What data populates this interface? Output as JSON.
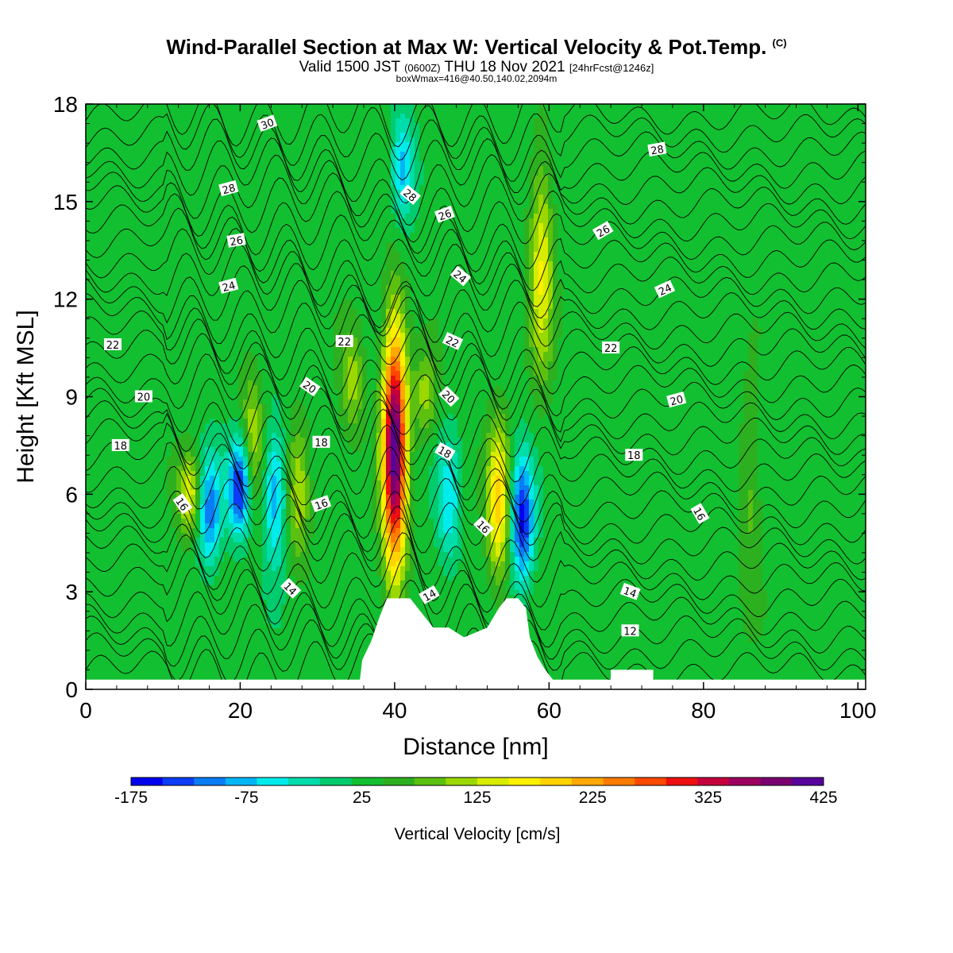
{
  "header": {
    "title": "Wind-Parallel Section at Max W: Vertical Velocity & Pot.Temp.",
    "title_mark": "(C)",
    "subtitle_a": "Valid 1500 JST",
    "subtitle_b": "(0600Z)",
    "subtitle_c": "THU 18 Nov 2021",
    "subtitle_d": "[24hrFcst@1246z]",
    "subsubtitle": "boxWmax=416@40.50,140.02,2094m"
  },
  "colors": {
    "bins": [
      "#0000ee",
      "#0c3cf5",
      "#0a7cf5",
      "#00b6f5",
      "#00ecec",
      "#00dcaa",
      "#00cc6e",
      "#12bf30",
      "#2db020",
      "#5cc010",
      "#9ad800",
      "#d8ec00",
      "#fff000",
      "#ffd200",
      "#ffa800",
      "#ff7c00",
      "#ff4800",
      "#ee1010",
      "#c4003c",
      "#9c0060",
      "#7a0070",
      "#56049c"
    ],
    "contour": "#000000",
    "terrain": "#ffffff"
  },
  "chart_data": {
    "type": "heatmap",
    "xlabel": "Distance [nm]",
    "ylabel": "Height [Kft MSL]",
    "xlim": [
      0,
      101
    ],
    "ylim": [
      0,
      18
    ],
    "xticks": [
      "0",
      "20",
      "40",
      "60",
      "80",
      "100"
    ],
    "xtick_values": [
      0,
      20,
      40,
      60,
      80,
      100
    ],
    "yticks": [
      "0",
      "3",
      "6",
      "9",
      "12",
      "15",
      "18"
    ],
    "ytick_values": [
      0,
      3,
      6,
      9,
      12,
      15,
      18
    ],
    "colorbar": {
      "label": "Vertical Velocity [cm/s]",
      "min": -175,
      "max": 425,
      "tick_labels": [
        "-175",
        "-75",
        "25",
        "125",
        "225",
        "325",
        "425"
      ]
    },
    "background_value": 30,
    "updrafts": [
      {
        "x": 40,
        "y_min": 3.0,
        "y_max": 11.8,
        "peak": 416
      },
      {
        "x": 53.5,
        "y_min": 3.0,
        "y_max": 8.5,
        "peak": 190
      },
      {
        "x": 59,
        "y_min": 9.0,
        "y_max": 17.0,
        "peak": 150
      },
      {
        "x": 21.5,
        "y_min": 5.0,
        "y_max": 10.0,
        "peak": 130
      },
      {
        "x": 13.5,
        "y_min": 4.5,
        "y_max": 7.5,
        "peak": 150
      },
      {
        "x": 27.5,
        "y_min": 3.5,
        "y_max": 8.5,
        "peak": 120
      },
      {
        "x": 34.5,
        "y_min": 7.5,
        "y_max": 11.5,
        "peak": 110
      },
      {
        "x": 44,
        "y_min": 7.5,
        "y_max": 10.5,
        "peak": 110
      },
      {
        "x": 86,
        "y_min": 2.5,
        "y_max": 9.5,
        "peak": 80
      }
    ],
    "downdrafts": [
      {
        "x": 20,
        "y_min": 4.5,
        "y_max": 8.0,
        "peak": -170
      },
      {
        "x": 16,
        "y_min": 3.5,
        "y_max": 7.5,
        "peak": -110
      },
      {
        "x": 24.5,
        "y_min": 3.5,
        "y_max": 8.5,
        "peak": -90
      },
      {
        "x": 56.5,
        "y_min": 3.0,
        "y_max": 7.5,
        "peak": -160
      },
      {
        "x": 47,
        "y_min": 3.5,
        "y_max": 8.0,
        "peak": -60
      },
      {
        "x": 41,
        "y_min": 14.0,
        "y_max": 18.0,
        "peak": -80
      }
    ],
    "terrain": [
      [
        0,
        0.3
      ],
      [
        35.5,
        0.3
      ],
      [
        35.8,
        0.9
      ],
      [
        37.0,
        1.5
      ],
      [
        38.0,
        2.2
      ],
      [
        39.0,
        2.8
      ],
      [
        42.0,
        2.8
      ],
      [
        43.0,
        2.5
      ],
      [
        44.0,
        2.2
      ],
      [
        45.0,
        1.9
      ],
      [
        47.0,
        1.9
      ],
      [
        49.0,
        1.6
      ],
      [
        52.0,
        1.9
      ],
      [
        53.5,
        2.5
      ],
      [
        54.5,
        2.8
      ],
      [
        56.0,
        2.8
      ],
      [
        57.0,
        2.5
      ],
      [
        57.5,
        1.6
      ],
      [
        58.5,
        1.0
      ],
      [
        59.5,
        0.6
      ],
      [
        60.5,
        0.3
      ],
      [
        68.0,
        0.3
      ],
      [
        68.0,
        0.6
      ],
      [
        73.5,
        0.6
      ],
      [
        73.5,
        0.3
      ],
      [
        101,
        0.3
      ]
    ],
    "theta_contours": [
      {
        "value": 12,
        "label": "12",
        "label_x": 70.5,
        "label_y": 1.8,
        "rot": 0
      },
      {
        "value": 14,
        "label": "14",
        "label_x": 26.5,
        "label_y": 3.1,
        "rot": 45
      },
      {
        "value": 14,
        "label": "14",
        "label_x": 44.5,
        "label_y": 2.9,
        "rot": -30
      },
      {
        "value": 14,
        "label": "14",
        "label_x": 70.5,
        "label_y": 3.0,
        "rot": 20
      },
      {
        "value": 16,
        "label": "16",
        "label_x": 12.5,
        "label_y": 5.7,
        "rot": 55
      },
      {
        "value": 16,
        "label": "16",
        "label_x": 30.5,
        "label_y": 5.7,
        "rot": -20
      },
      {
        "value": 16,
        "label": "16",
        "label_x": 51.5,
        "label_y": 5.0,
        "rot": 45
      },
      {
        "value": 16,
        "label": "16",
        "label_x": 79.5,
        "label_y": 5.4,
        "rot": 60
      },
      {
        "value": 18,
        "label": "18",
        "label_x": 4.5,
        "label_y": 7.5,
        "rot": 0
      },
      {
        "value": 18,
        "label": "18",
        "label_x": 30.5,
        "label_y": 7.6,
        "rot": 0
      },
      {
        "value": 18,
        "label": "18",
        "label_x": 46.5,
        "label_y": 7.3,
        "rot": 30
      },
      {
        "value": 18,
        "label": "18",
        "label_x": 71.0,
        "label_y": 7.2,
        "rot": 0
      },
      {
        "value": 20,
        "label": "20",
        "label_x": 7.5,
        "label_y": 9.0,
        "rot": 0
      },
      {
        "value": 20,
        "label": "20",
        "label_x": 29.0,
        "label_y": 9.3,
        "rot": 35
      },
      {
        "value": 20,
        "label": "20",
        "label_x": 47.0,
        "label_y": 9.0,
        "rot": 45
      },
      {
        "value": 20,
        "label": "20",
        "label_x": 76.5,
        "label_y": 8.9,
        "rot": -15
      },
      {
        "value": 22,
        "label": "22",
        "label_x": 3.5,
        "label_y": 10.6,
        "rot": 0
      },
      {
        "value": 22,
        "label": "22",
        "label_x": 33.5,
        "label_y": 10.7,
        "rot": 0
      },
      {
        "value": 22,
        "label": "22",
        "label_x": 47.5,
        "label_y": 10.7,
        "rot": 25
      },
      {
        "value": 22,
        "label": "22",
        "label_x": 68.0,
        "label_y": 10.5,
        "rot": 0
      },
      {
        "value": 24,
        "label": "24",
        "label_x": 18.5,
        "label_y": 12.4,
        "rot": -15
      },
      {
        "value": 24,
        "label": "24",
        "label_x": 48.5,
        "label_y": 12.7,
        "rot": 40
      },
      {
        "value": 24,
        "label": "24",
        "label_x": 75.0,
        "label_y": 12.3,
        "rot": -25
      },
      {
        "value": 26,
        "label": "26",
        "label_x": 19.5,
        "label_y": 13.8,
        "rot": -10
      },
      {
        "value": 26,
        "label": "26",
        "label_x": 46.5,
        "label_y": 14.6,
        "rot": -20
      },
      {
        "value": 26,
        "label": "26",
        "label_x": 67.0,
        "label_y": 14.1,
        "rot": -30
      },
      {
        "value": 28,
        "label": "28",
        "label_x": 18.5,
        "label_y": 15.4,
        "rot": -15
      },
      {
        "value": 28,
        "label": "28",
        "label_x": 42.0,
        "label_y": 15.2,
        "rot": 40
      },
      {
        "value": 28,
        "label": "28",
        "label_x": 74.0,
        "label_y": 16.6,
        "rot": -10
      },
      {
        "value": 30,
        "label": "30",
        "label_x": 23.5,
        "label_y": 17.4,
        "rot": -20
      }
    ]
  }
}
